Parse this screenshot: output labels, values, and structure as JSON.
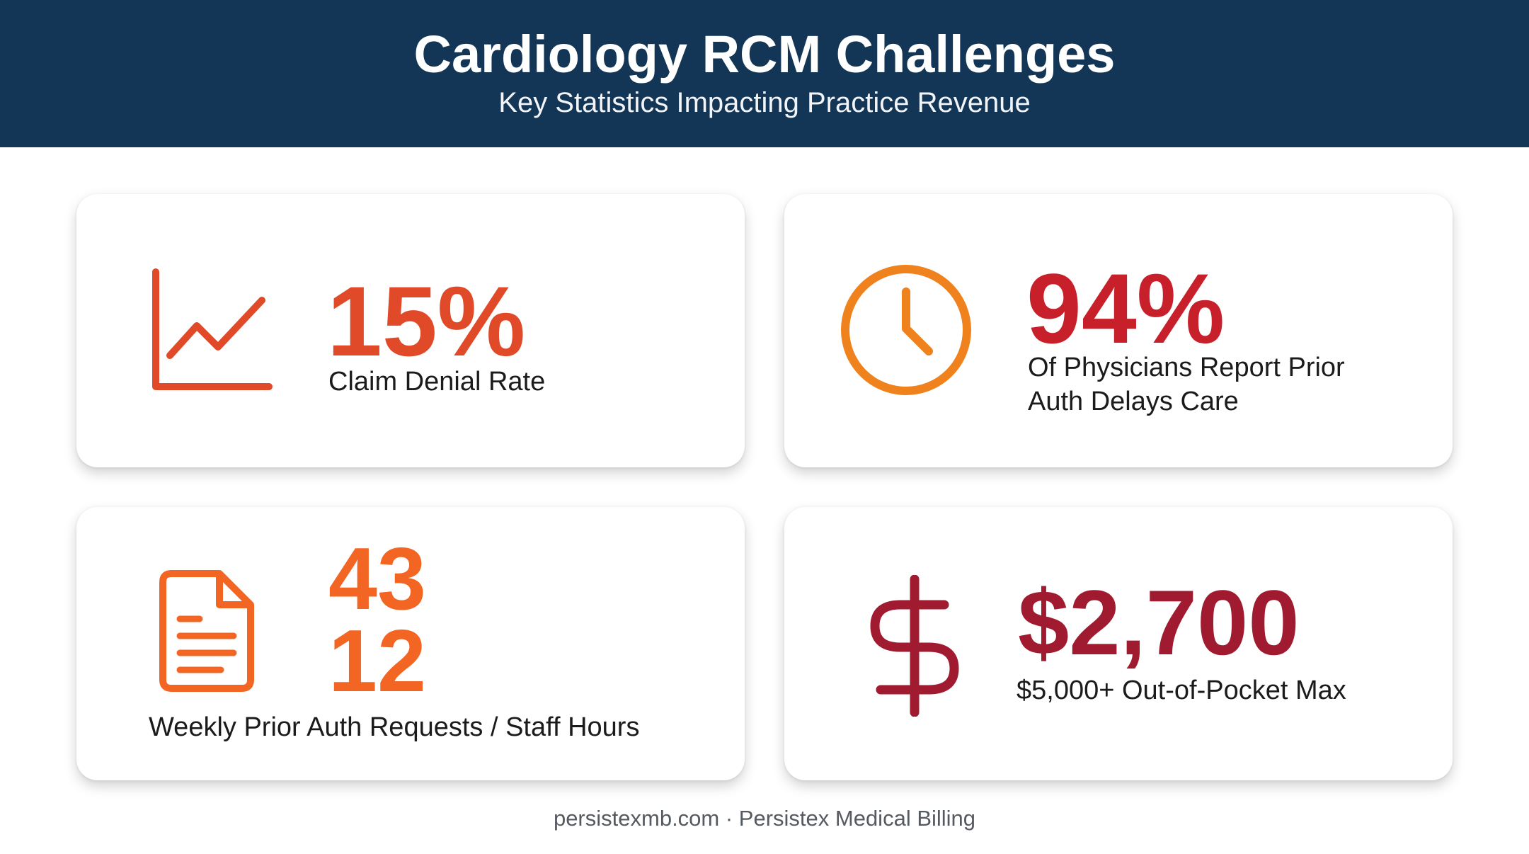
{
  "header": {
    "title": "Cardiology RCM Challenges",
    "subtitle": "Key Statistics Impacting Practice Revenue"
  },
  "cards": [
    {
      "stat": "15%",
      "label": "Claim Denial Rate",
      "icon": "line-chart-icon",
      "color": "#e04a28"
    },
    {
      "stat": "94%",
      "label_lines": [
        "Of Physicians Report Prior",
        "Auth Delays Care"
      ],
      "icon": "clock-icon",
      "color": "#c8202a",
      "icon_color": "#f0821e"
    },
    {
      "stats": [
        "43",
        "12"
      ],
      "label": "Weekly Prior Auth Requests / Staff Hours",
      "icon": "document-icon",
      "color": "#f26522"
    },
    {
      "stat": "$2,700",
      "label": "$5,000+ Out-of-Pocket Max",
      "icon": "dollar-sign-icon",
      "color": "#a01b30"
    }
  ],
  "footer": {
    "text": "persistexmb.com · Persistex Medical Billing"
  }
}
